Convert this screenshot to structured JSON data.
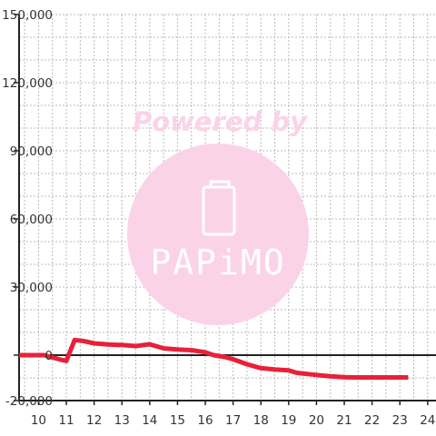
{
  "chart_data": {
    "type": "line",
    "title": "",
    "xlabel": "",
    "ylabel": "",
    "xlim": [
      9.3,
      24.3
    ],
    "ylim": [
      -20000,
      150000
    ],
    "x_ticks": [
      10,
      11,
      12,
      13,
      14,
      15,
      16,
      17,
      18,
      19,
      20,
      21,
      22,
      23,
      24
    ],
    "x_tick_labels": [
      "10",
      "11",
      "12",
      "13",
      "14",
      "15",
      "16",
      "17",
      "18",
      "19",
      "20",
      "21",
      "22",
      "23",
      "24"
    ],
    "y_ticks": [
      150000,
      120000,
      90000,
      60000,
      30000,
      0,
      -20000
    ],
    "y_tick_labels": [
      "150,000",
      "120,000",
      "90,000",
      "60,000",
      "30,000",
      "0",
      "-20,000"
    ],
    "grid": {
      "horizontal_step": 10000,
      "vertical_step": 0.5,
      "style": "dotted"
    },
    "colors": {
      "series": "#e8203a",
      "axis": "#222222",
      "grid": "#bbbbbb",
      "watermark": "#fbd3e8"
    },
    "series": [
      {
        "x": [
          9.3,
          10.2,
          10.5,
          10.8,
          11.0,
          11.3,
          11.6,
          12.0,
          12.5,
          13.0,
          13.5,
          14.0,
          14.5,
          15.0,
          15.5,
          16.0,
          16.3,
          16.7,
          17.0,
          17.5,
          18.0,
          18.5,
          19.0,
          19.3,
          20.0,
          20.5,
          21.0,
          21.5,
          22.0,
          22.5,
          23.0,
          23.3
        ],
        "y": [
          0,
          0,
          -1000,
          -2000,
          -2500,
          6700,
          6300,
          5200,
          4700,
          4500,
          4000,
          4800,
          3000,
          2500,
          2200,
          1300,
          0,
          -800,
          -1800,
          -4000,
          -5700,
          -6300,
          -6700,
          -7800,
          -8700,
          -9300,
          -9700,
          -9800,
          -9800,
          -9800,
          -9800,
          -9800
        ]
      }
    ]
  },
  "watermark": {
    "line1": "Powered by",
    "brand": "PAPiMO"
  }
}
